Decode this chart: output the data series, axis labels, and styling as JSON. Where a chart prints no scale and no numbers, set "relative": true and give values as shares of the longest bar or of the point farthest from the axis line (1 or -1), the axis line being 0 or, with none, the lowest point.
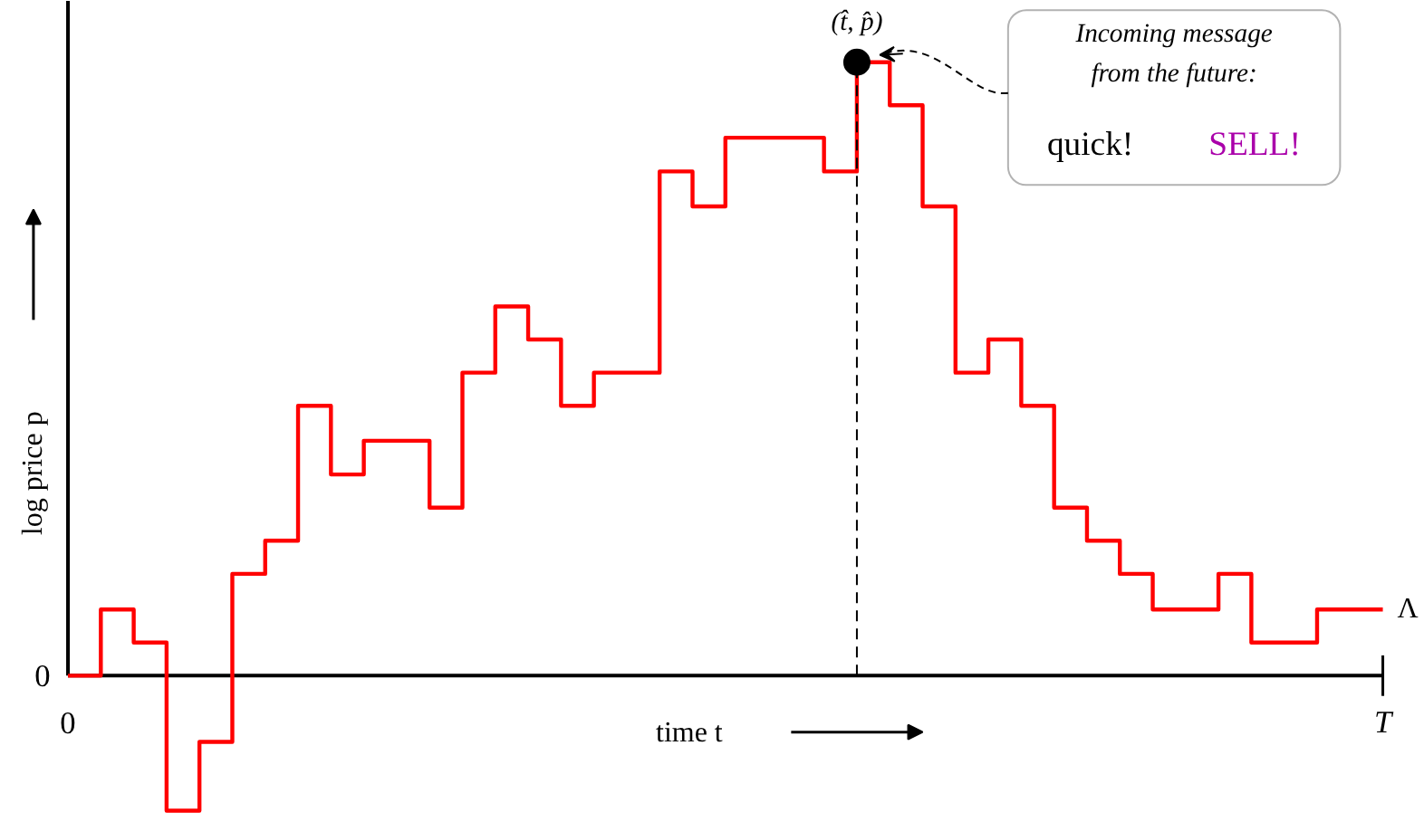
{
  "chart_data": {
    "type": "step",
    "relative": true,
    "xlabel": "time t",
    "ylabel": "log price p",
    "marker": "none",
    "line_style": "solid",
    "categories": [
      "0",
      null,
      null,
      null,
      null,
      null,
      null,
      null,
      null,
      null,
      null,
      null,
      null,
      null,
      null,
      null,
      null,
      null,
      null,
      null,
      null,
      null,
      null,
      null,
      null,
      null,
      null,
      null,
      null,
      null,
      null,
      null,
      null,
      null,
      null,
      null,
      null,
      null,
      null,
      null,
      "T"
    ],
    "series": [
      {
        "name": "Λ",
        "color": "#ff0000",
        "values": [
          0,
          0.108,
          0.054,
          -0.22,
          -0.108,
          0.166,
          0.22,
          0.44,
          0.328,
          0.383,
          0.383,
          0.274,
          0.494,
          0.602,
          0.548,
          0.44,
          0.494,
          0.494,
          0.822,
          0.765,
          0.877,
          0.877,
          0.877,
          0.822,
          1,
          0.93,
          0.765,
          0.494,
          0.548,
          0.44,
          0.274,
          0.22,
          0.166,
          0.108,
          0.108,
          0.166,
          0.054,
          0.054,
          0.108,
          0.108,
          0.108
        ]
      }
    ],
    "annotations": [
      "(t̂, p̂)",
      "0",
      "Incoming message",
      "from the future:",
      "quick!",
      "SELL!"
    ]
  }
}
